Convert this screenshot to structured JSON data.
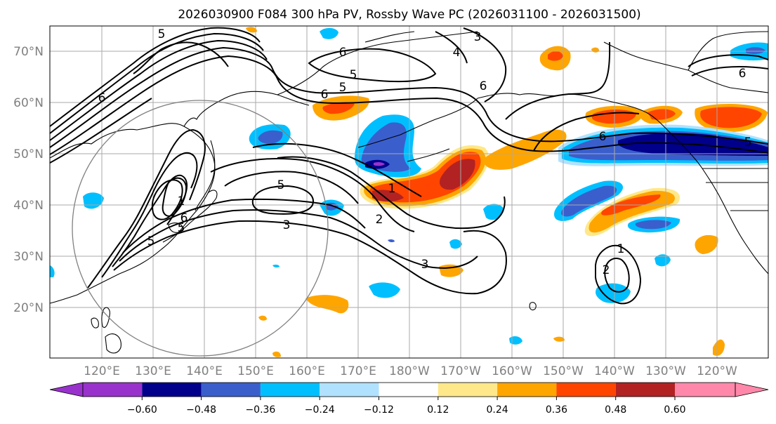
{
  "title": "2026030900 F084 300 hPa PV, Rossby Wave PC (2026031100 - 2026031500)",
  "lat_labels": [
    "70°N",
    "60°N",
    "50°N",
    "40°N",
    "30°N",
    "20°N"
  ],
  "lon_labels": [
    "120°E",
    "130°E",
    "140°E",
    "150°E",
    "160°E",
    "170°E",
    "180°W",
    "170°W",
    "160°W",
    "150°W",
    "140°W",
    "130°W",
    "120°W"
  ],
  "colorbar": {
    "ticks": [
      "−0.60",
      "−0.48",
      "−0.36",
      "−0.24",
      "−0.12",
      "0.12",
      "0.24",
      "0.36",
      "0.48",
      "0.60"
    ],
    "colors": [
      "#9932cc",
      "#00008b",
      "#3a5fcd",
      "#00bfff",
      "#b0e2ff",
      "#ffffff",
      "#ffe88a",
      "#ffa500",
      "#ff4500",
      "#b22222",
      "#ff88aa"
    ]
  },
  "contour_labels": [
    "5",
    "6",
    "4",
    "3",
    "6",
    "5",
    "6",
    "5",
    "6",
    "5",
    "1",
    "6",
    "5",
    "5",
    "3",
    "1",
    "2",
    "3",
    "6",
    "5",
    "1",
    "2",
    "6"
  ]
}
